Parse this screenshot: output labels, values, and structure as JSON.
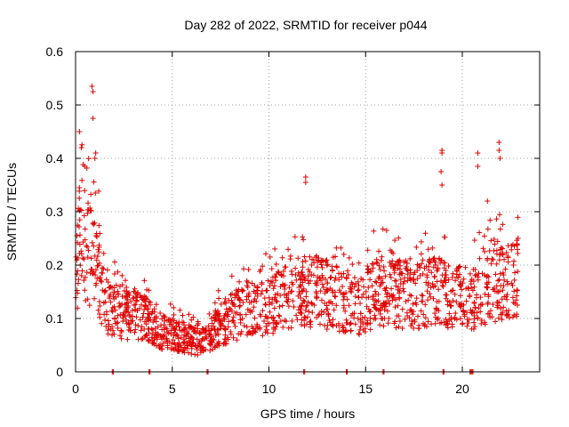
{
  "chart_data": {
    "type": "scatter",
    "title": "Day 282 of 2022, SRMTID for receiver p044",
    "xlabel": "GPS time / hours",
    "ylabel": "SRMTID / TECUs",
    "xlim": [
      0,
      24
    ],
    "ylim": [
      0,
      0.6
    ],
    "xticks": [
      "0",
      "5",
      "10",
      "15",
      "20"
    ],
    "yticks": [
      "0",
      "0.1",
      "0.2",
      "0.3",
      "0.4",
      "0.5",
      "0.6"
    ],
    "grid": true,
    "marker": "+",
    "color": "#e00000",
    "series": [
      {
        "name": "SRMTID",
        "profile": [
          [
            0.0,
            0.14
          ],
          [
            0.3,
            0.3
          ],
          [
            0.6,
            0.22
          ],
          [
            1.0,
            0.24
          ],
          [
            1.5,
            0.12
          ],
          [
            2.5,
            0.11
          ],
          [
            3.5,
            0.1
          ],
          [
            4.5,
            0.075
          ],
          [
            5.5,
            0.065
          ],
          [
            6.5,
            0.055
          ],
          [
            7.5,
            0.09
          ],
          [
            8.5,
            0.11
          ],
          [
            9.5,
            0.12
          ],
          [
            10.5,
            0.13
          ],
          [
            11.5,
            0.15
          ],
          [
            12.5,
            0.15
          ],
          [
            13.5,
            0.14
          ],
          [
            14.5,
            0.12
          ],
          [
            15.5,
            0.15
          ],
          [
            16.5,
            0.15
          ],
          [
            17.5,
            0.14
          ],
          [
            18.5,
            0.15
          ],
          [
            19.5,
            0.14
          ],
          [
            20.5,
            0.14
          ],
          [
            21.5,
            0.17
          ],
          [
            22.5,
            0.17
          ],
          [
            22.9,
            0.18
          ]
        ],
        "spikes": [
          [
            0.2,
            0.45
          ],
          [
            0.3,
            0.42
          ],
          [
            0.85,
            0.535
          ],
          [
            0.9,
            0.525
          ],
          [
            0.9,
            0.475
          ],
          [
            1.0,
            0.4
          ],
          [
            11.9,
            0.365
          ],
          [
            11.9,
            0.355
          ],
          [
            18.95,
            0.415
          ],
          [
            18.95,
            0.41
          ],
          [
            18.9,
            0.375
          ],
          [
            18.95,
            0.35
          ],
          [
            20.8,
            0.41
          ],
          [
            20.8,
            0.385
          ],
          [
            21.9,
            0.43
          ],
          [
            21.9,
            0.415
          ],
          [
            21.95,
            0.4
          ],
          [
            21.3,
            0.32
          ]
        ],
        "zeros": [
          1.9,
          3.8,
          6.8,
          11.8,
          14.0,
          15.9,
          19.0,
          20.4,
          20.5
        ]
      }
    ]
  }
}
